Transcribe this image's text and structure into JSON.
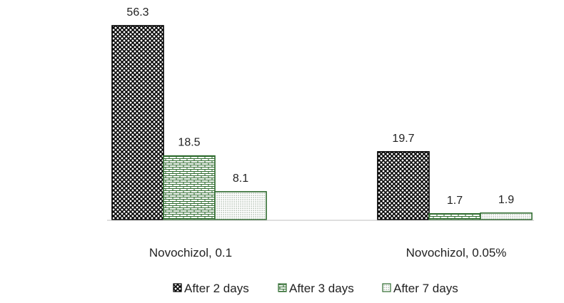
{
  "chart_data": {
    "type": "bar",
    "categories": [
      "Novochizol, 0.1",
      "Novochizol, 0.05%"
    ],
    "series": [
      {
        "name": "After 2 days",
        "values": [
          56.3,
          19.7
        ],
        "pattern": "diamond-crosshatch",
        "color": "#000000"
      },
      {
        "name": "After 3 days",
        "values": [
          18.5,
          1.7
        ],
        "pattern": "brick",
        "color": "#2e6b2e"
      },
      {
        "name": "After 7 days",
        "values": [
          8.1,
          1.9
        ],
        "pattern": "dots",
        "color": "#2e6b2e"
      }
    ],
    "data_labels": [
      [
        "56.3",
        "19.7"
      ],
      [
        "18.5",
        "1.7"
      ],
      [
        "8.1",
        "1.9"
      ]
    ],
    "title": "",
    "xlabel": "",
    "ylabel": "",
    "ylim": [
      0,
      56.3
    ],
    "grid": false,
    "legend_position": "bottom"
  }
}
